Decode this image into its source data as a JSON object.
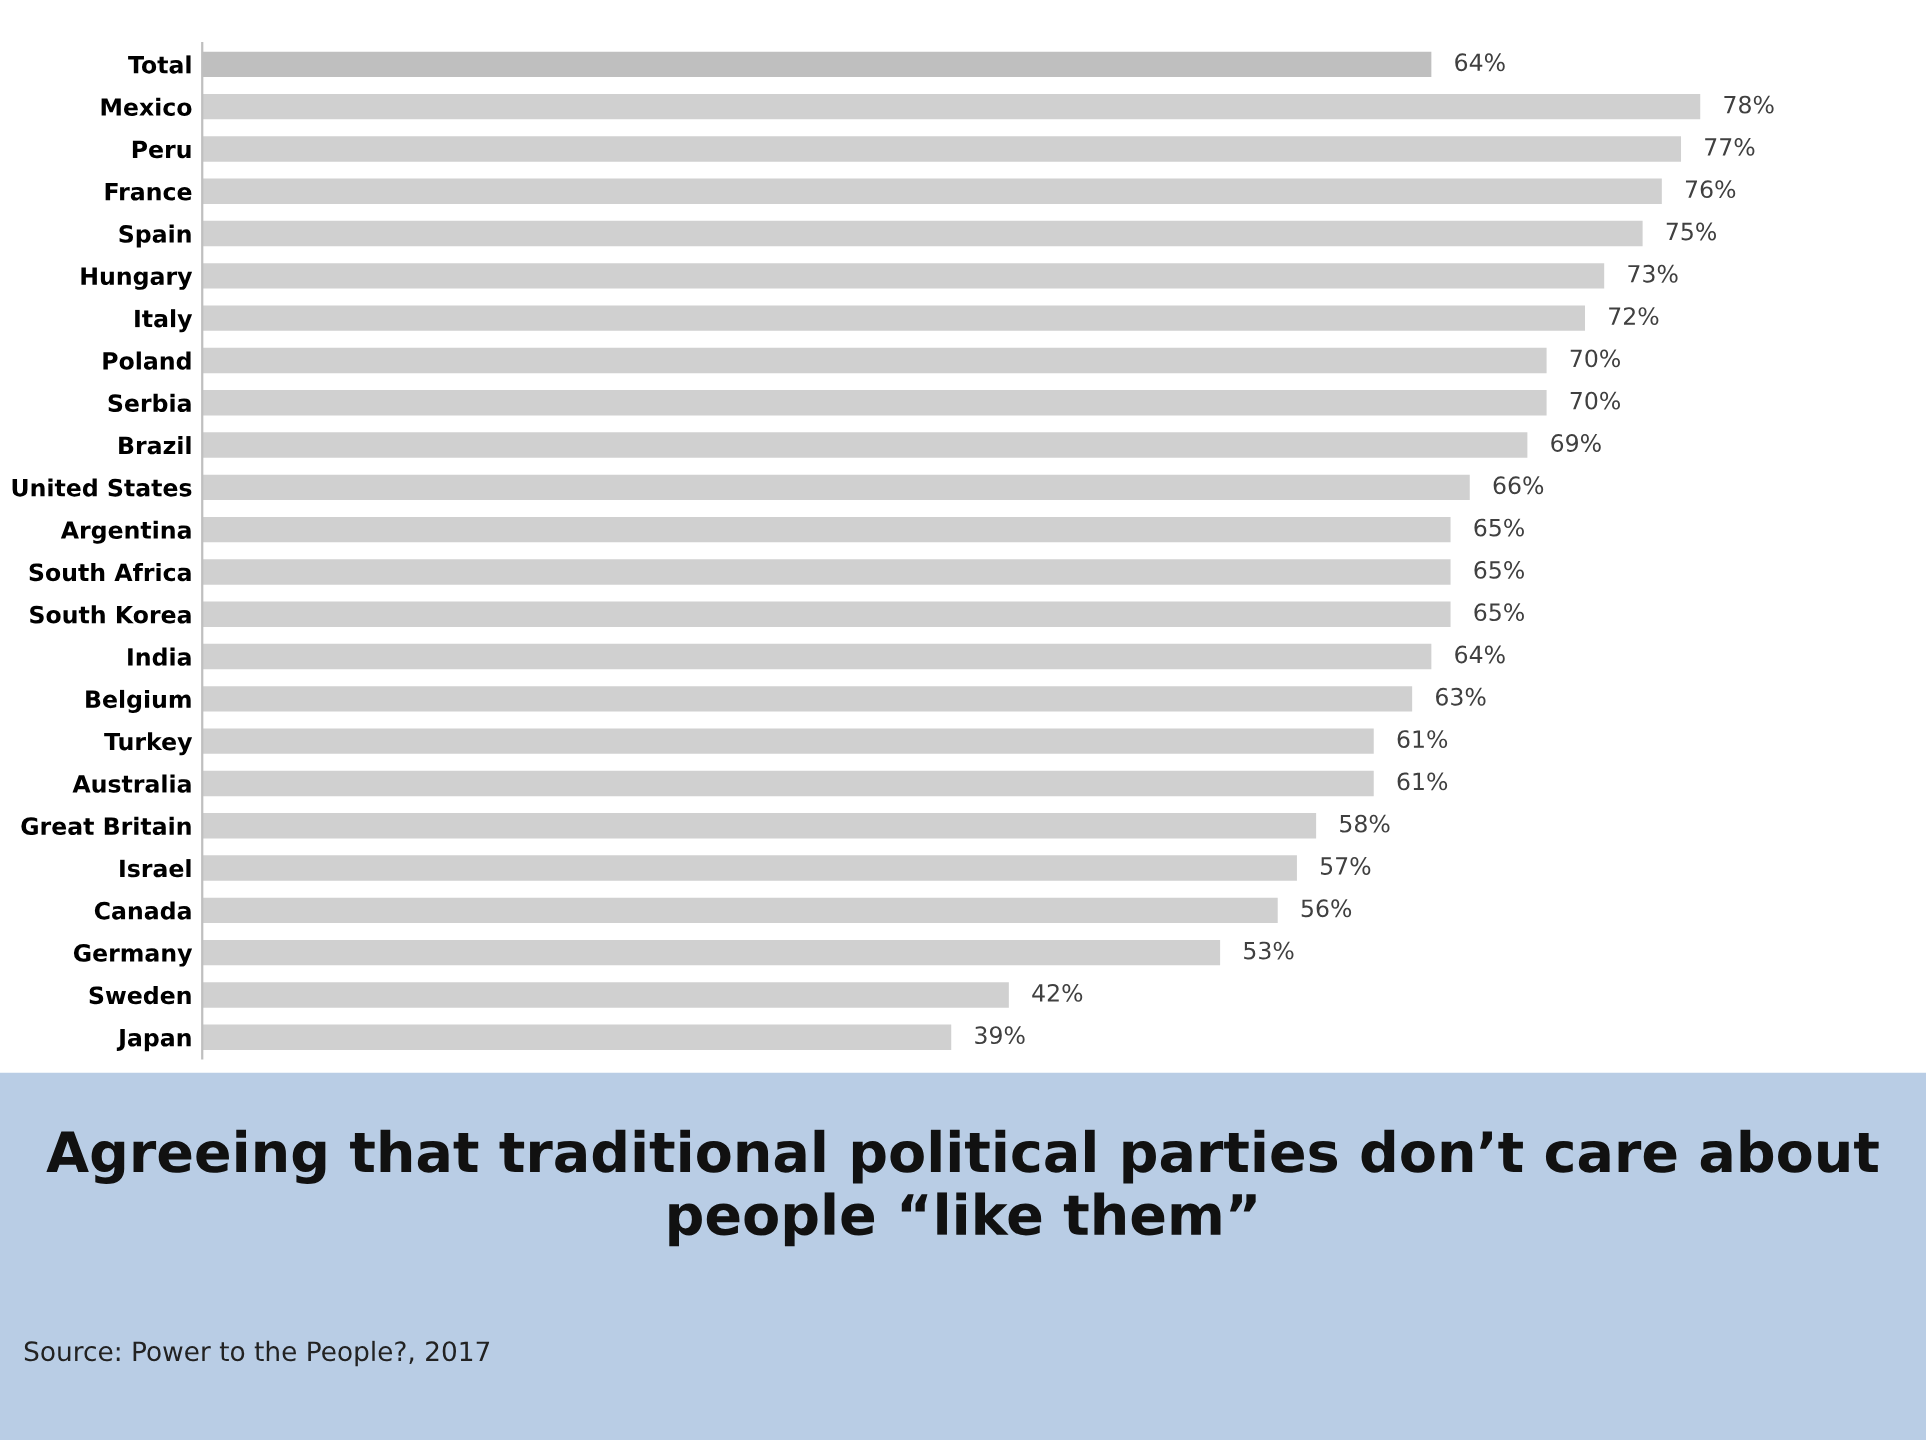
{
  "chart_data": {
    "type": "bar",
    "orientation": "horizontal",
    "title": "Agreeing that traditional political parties don’t care about people “like them”",
    "categories": [
      "Total",
      "Mexico",
      "Peru",
      "France",
      "Spain",
      "Hungary",
      "Italy",
      "Poland",
      "Serbia",
      "Brazil",
      "United States",
      "Argentina",
      "South Africa",
      "South Korea",
      "India",
      "Belgium",
      "Turkey",
      "Australia",
      "Great Britain",
      "Israel",
      "Canada",
      "Germany",
      "Sweden",
      "Japan"
    ],
    "values": [
      64,
      78,
      77,
      76,
      75,
      73,
      72,
      70,
      70,
      69,
      66,
      65,
      65,
      65,
      64,
      63,
      61,
      61,
      58,
      57,
      56,
      53,
      42,
      39
    ],
    "value_labels": [
      "64%",
      "78%",
      "77%",
      "76%",
      "75%",
      "73%",
      "72%",
      "70%",
      "70%",
      "69%",
      "66%",
      "65%",
      "65%",
      "65%",
      "64%",
      "63%",
      "61%",
      "61%",
      "58%",
      "57%",
      "56%",
      "53%",
      "42%",
      "39%"
    ],
    "colors": [
      "#bfbfbf",
      "#d0d0d0",
      "#d0d0d0",
      "#d0d0d0",
      "#d0d0d0",
      "#d0d0d0",
      "#d0d0d0",
      "#d0d0d0",
      "#d0d0d0",
      "#d0d0d0",
      "#d0d0d0",
      "#d0d0d0",
      "#d0d0d0",
      "#d0d0d0",
      "#d0d0d0",
      "#d0d0d0",
      "#d0d0d0",
      "#d0d0d0",
      "#d0d0d0",
      "#d0d0d0",
      "#d0d0d0",
      "#d0d0d0",
      "#d0d0d0",
      "#d0d0d0"
    ],
    "annotations": [
      "Source: Power to the People?, 2017"
    ]
  }
}
